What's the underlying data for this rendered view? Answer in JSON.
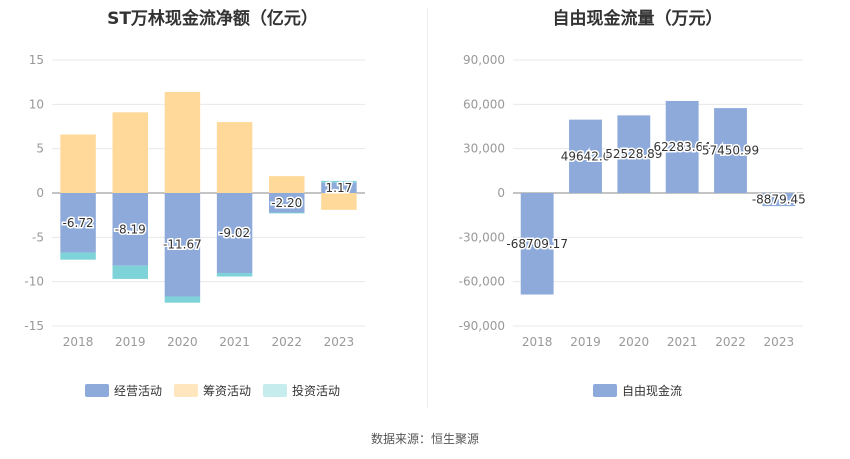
{
  "colors": {
    "operating": "#8eaadb",
    "financing": "#ffd99a",
    "investing": "#7dd3d8",
    "free_cash_flow": "#8eaadb",
    "grid": "#e8e8e8",
    "axis_text": "#999999",
    "label_text": "#333333"
  },
  "source": "数据来源：恒生聚源",
  "chart_data": [
    {
      "type": "bar",
      "title": "ST万林现金流净额（亿元）",
      "categories": [
        "2018",
        "2019",
        "2020",
        "2021",
        "2022",
        "2023"
      ],
      "ylim": [
        -15,
        15
      ],
      "yticks": [
        15,
        10,
        5,
        0,
        -5,
        -10,
        -15
      ],
      "ytick_labels": [
        "15",
        "10",
        "5",
        "0",
        "-5",
        "-10",
        "-15"
      ],
      "stacked": true,
      "legend_position": "bottom",
      "series": [
        {
          "name": "经营活动",
          "key": "operating",
          "values": [
            -6.72,
            -8.19,
            -11.67,
            -9.02,
            -2.2,
            1.17
          ]
        },
        {
          "name": "筹资活动",
          "key": "financing",
          "values": [
            6.6,
            9.1,
            11.4,
            8.0,
            1.9,
            -1.9
          ]
        },
        {
          "name": "投资活动",
          "key": "investing",
          "values": [
            -0.8,
            -1.5,
            -0.7,
            -0.4,
            -0.1,
            0.2
          ]
        }
      ],
      "data_labels": [
        "-6.72",
        "-8.19",
        "-11.67",
        "-9.02",
        "-2.20",
        "1.17"
      ]
    },
    {
      "type": "bar",
      "title": "自由现金流量（万元）",
      "categories": [
        "2018",
        "2019",
        "2020",
        "2021",
        "2022",
        "2023"
      ],
      "ylim": [
        -90000,
        90000
      ],
      "yticks": [
        90000,
        60000,
        30000,
        0,
        -30000,
        -60000,
        -90000
      ],
      "ytick_labels": [
        "90,000",
        "60,000",
        "30,000",
        "0",
        "-30,000",
        "-60,000",
        "-90,000"
      ],
      "legend_position": "bottom",
      "series": [
        {
          "name": "自由现金流",
          "key": "free_cash_flow",
          "values": [
            -68709.17,
            49642.6,
            52528.89,
            62283.64,
            57450.99,
            -8879.45
          ]
        }
      ],
      "data_labels": [
        "-68709.17",
        "49642.6",
        "52528.89",
        "62283.64",
        "57450.99",
        "-8879.45"
      ]
    }
  ]
}
